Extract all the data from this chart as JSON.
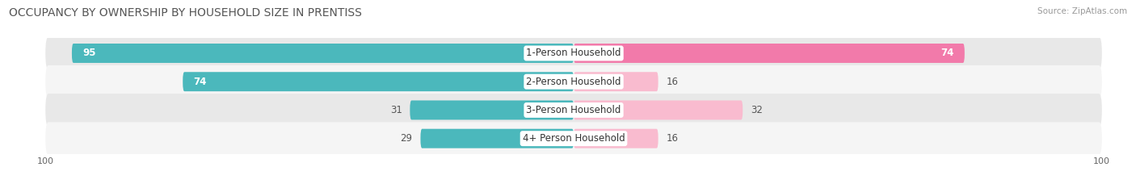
{
  "title": "OCCUPANCY BY OWNERSHIP BY HOUSEHOLD SIZE IN PRENTISS",
  "source": "Source: ZipAtlas.com",
  "categories": [
    "1-Person Household",
    "2-Person Household",
    "3-Person Household",
    "4+ Person Household"
  ],
  "owner_values": [
    95,
    74,
    31,
    29
  ],
  "renter_values": [
    74,
    16,
    32,
    16
  ],
  "max_value": 100,
  "owner_color": "#4bb8bc",
  "renter_color": "#f27aaa",
  "renter_color_light": "#f9bbcf",
  "row_bg_color_dark": "#e8e8e8",
  "row_bg_color_light": "#f5f5f5",
  "title_fontsize": 10,
  "value_fontsize": 8.5,
  "cat_fontsize": 8.5,
  "axis_label_fontsize": 8,
  "legend_fontsize": 8.5
}
